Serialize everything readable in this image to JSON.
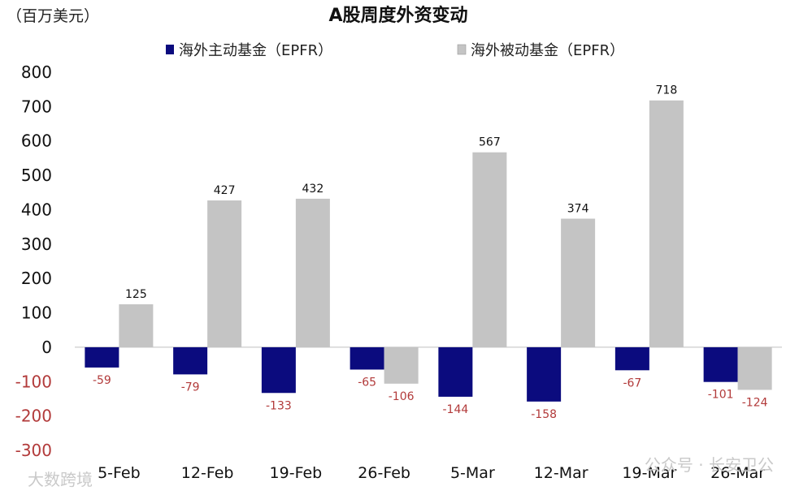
{
  "chart_data": {
    "type": "bar",
    "title": "A股周度外资变动",
    "unit_label": "（百万美元）",
    "categories": [
      "5-Feb",
      "12-Feb",
      "19-Feb",
      "26-Feb",
      "5-Mar",
      "12-Mar",
      "19-Mar",
      "26-Mar"
    ],
    "series": [
      {
        "name": "海外主动基金（EPFR）",
        "color": "#0b0b7e",
        "values": [
          -59,
          -79,
          -133,
          -65,
          -144,
          -158,
          -67,
          -101
        ]
      },
      {
        "name": "海外被动基金（EPFR）",
        "color": "#c4c4c4",
        "values": [
          125,
          427,
          432,
          -106,
          567,
          374,
          718,
          -124
        ]
      }
    ],
    "yticks": [
      "800",
      "700",
      "600",
      "500",
      "400",
      "300",
      "200",
      "100",
      "0",
      "-100",
      "-200",
      "-300"
    ],
    "ylim": [
      -300,
      800
    ],
    "legend": "top",
    "grid": false,
    "negative_label_color": "#b23a3a"
  },
  "watermarks": {
    "left": "大数跨境",
    "right": "公众号 · 长安卫公"
  }
}
